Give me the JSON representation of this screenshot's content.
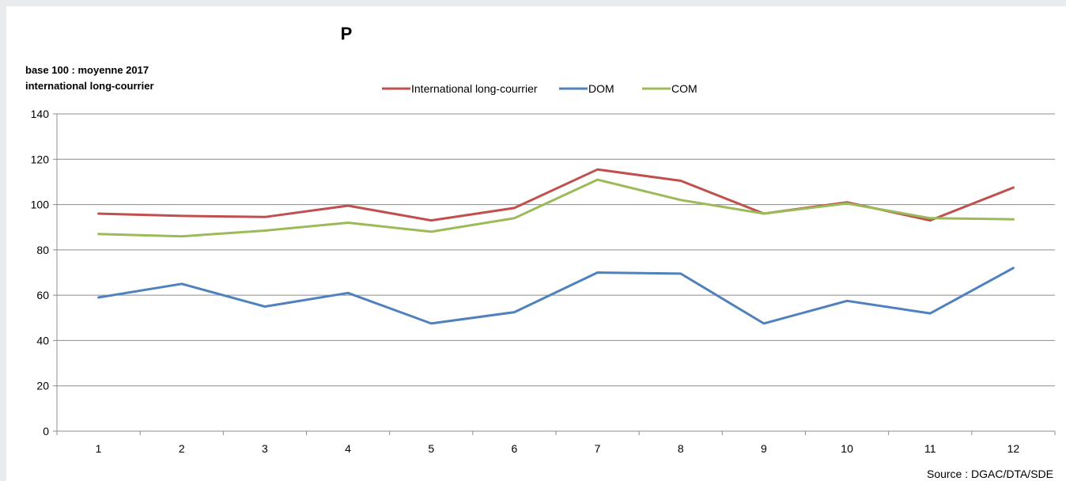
{
  "chart_data": {
    "type": "line",
    "title": "P",
    "ylabel_lines": [
      "base 100 : moyenne 2017",
      "international long-courrier"
    ],
    "x": [
      1,
      2,
      3,
      4,
      5,
      6,
      7,
      8,
      9,
      10,
      11,
      12
    ],
    "x_tick_labels": [
      "1",
      "2",
      "3",
      "4",
      "5",
      "6",
      "7",
      "8",
      "9",
      "10",
      "11",
      "12"
    ],
    "ylim": [
      0,
      140
    ],
    "y_ticks": [
      0,
      20,
      40,
      60,
      80,
      100,
      120,
      140
    ],
    "y_tick_labels": [
      "0",
      "20",
      "40",
      "60",
      "80",
      "100",
      "120",
      "140"
    ],
    "grid": "horizontal",
    "legend_position": "top-center",
    "series": [
      {
        "name": "International long-courrier",
        "color": "#c0504d",
        "values": [
          96,
          95,
          94.5,
          99.5,
          93,
          98.5,
          115.5,
          110.5,
          96,
          101,
          93,
          107.5
        ]
      },
      {
        "name": "DOM",
        "color": "#4f81bd",
        "values": [
          59,
          65,
          55,
          61,
          47.5,
          52.5,
          70,
          69.5,
          47.5,
          57.5,
          52,
          72
        ]
      },
      {
        "name": "COM",
        "color": "#9bbb59",
        "values": [
          87,
          86,
          88.5,
          92,
          88,
          94,
          111,
          102,
          96,
          100.5,
          94,
          93.5
        ]
      }
    ],
    "source": "Source : DGAC/DTA/SDE"
  }
}
